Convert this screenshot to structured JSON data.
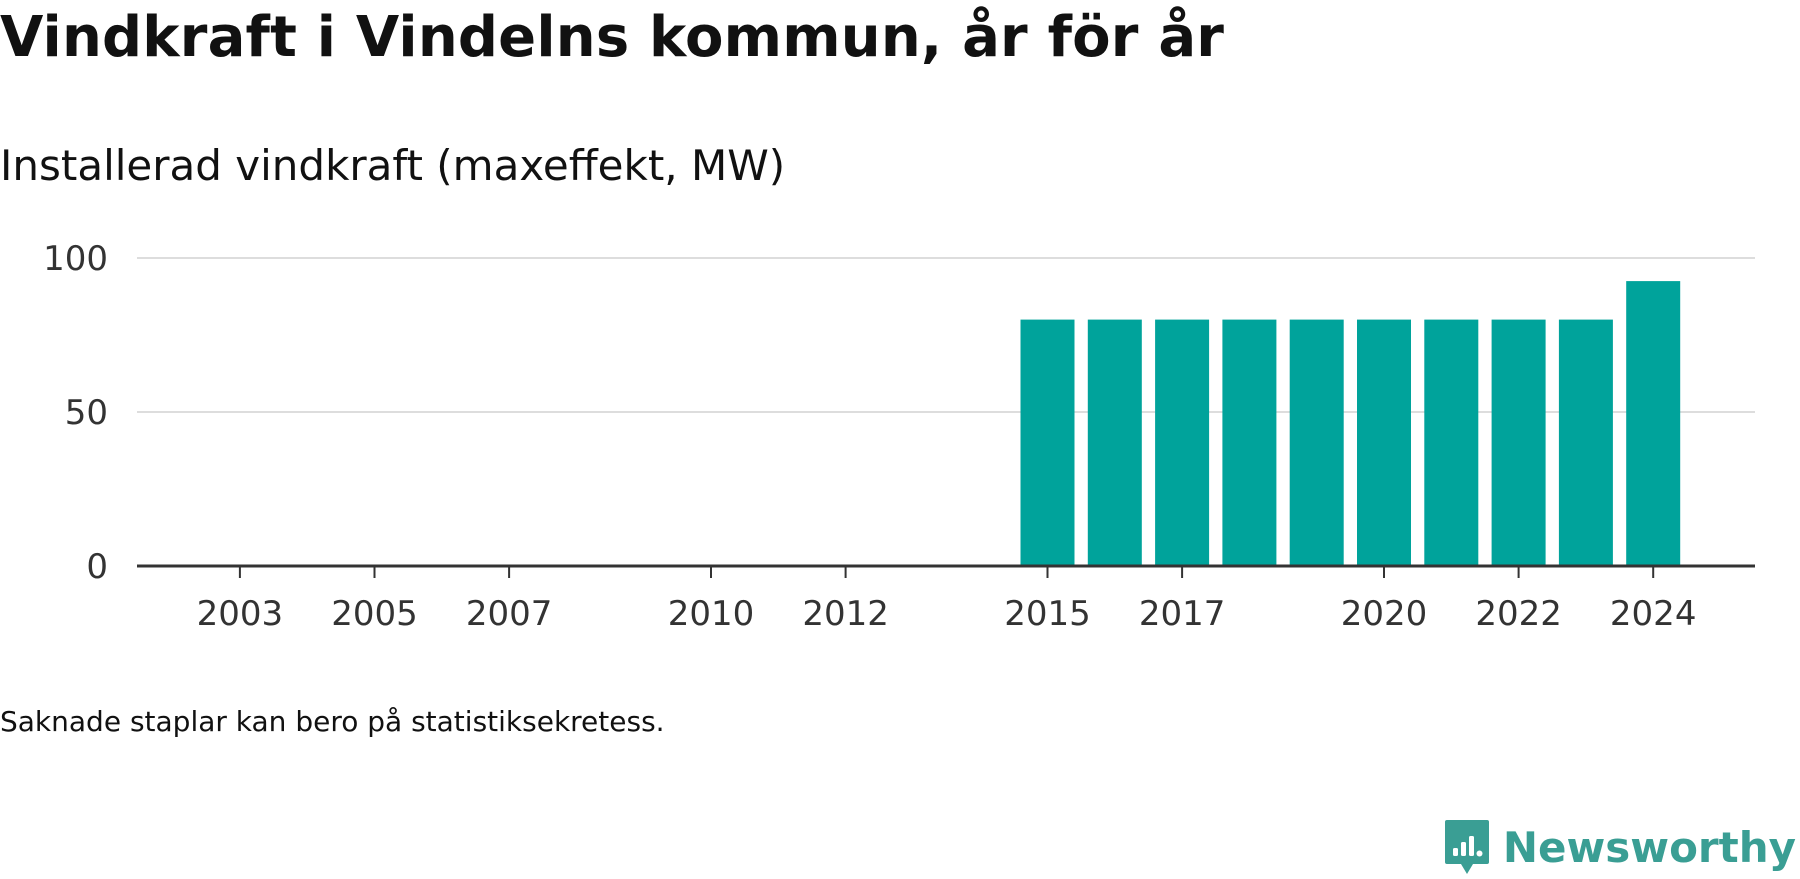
{
  "title": "Vindkraft i Vindelns kommun, år för år",
  "subtitle": "Installerad vindkraft (maxeffekt, MW)",
  "note": "Saknade staplar kan bero på statistiksekretess.",
  "brand": {
    "name": "Newsworthy",
    "icon": "newsworthy-logo-icon"
  },
  "colors": {
    "bar": "#00a39b",
    "gridline": "#dddddd",
    "baseline": "#333333",
    "brand": "#3a9e94"
  },
  "chart_data": {
    "type": "bar",
    "title": "Vindkraft i Vindelns kommun, år för år",
    "subtitle": "Installerad vindkraft (maxeffekt, MW)",
    "xlabel": "",
    "ylabel": "",
    "x_range": [
      2002,
      2025
    ],
    "ylim": [
      0,
      100
    ],
    "y_ticks": [
      0,
      50,
      100
    ],
    "x_ticks": [
      2003,
      2005,
      2007,
      2010,
      2012,
      2015,
      2017,
      2020,
      2022,
      2024
    ],
    "grid": true,
    "legend": "none",
    "categories": [
      2015,
      2016,
      2017,
      2018,
      2019,
      2020,
      2021,
      2022,
      2023,
      2024
    ],
    "values": [
      80,
      80,
      80,
      80,
      80,
      80,
      80,
      80,
      80,
      92.5
    ]
  }
}
